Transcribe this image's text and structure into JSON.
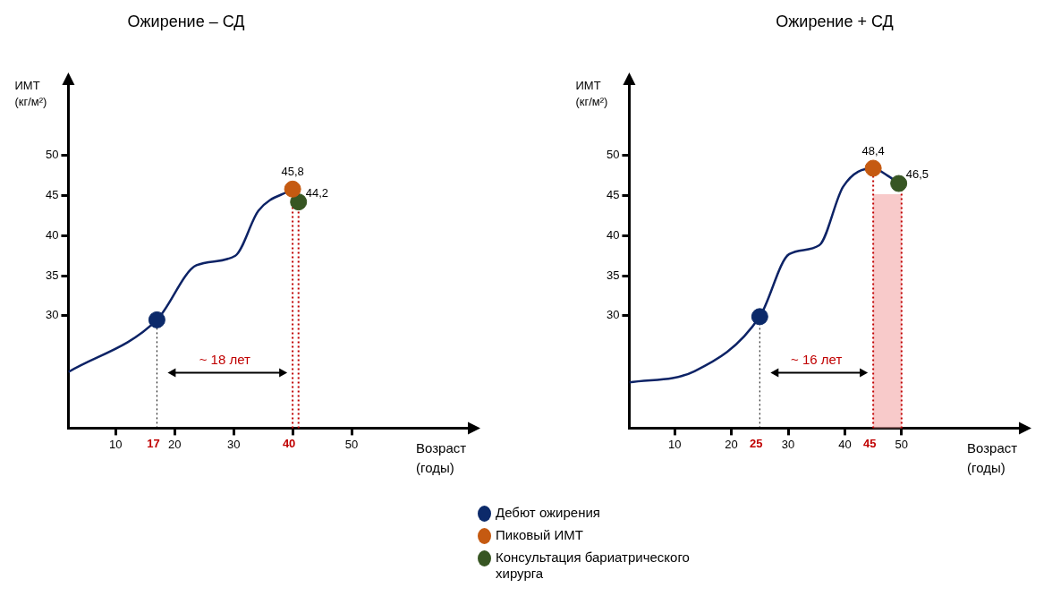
{
  "chart_data": [
    {
      "type": "line",
      "title": "Ожирение – СД",
      "xlabel": "Возраст\n(годы)",
      "ylabel": "ИМТ\n(кг/м²)",
      "xlim": [
        2,
        70
      ],
      "ylim": [
        16,
        59
      ],
      "xticks": [
        10,
        20,
        30,
        {
          "value": 40,
          "label": null
        },
        50
      ],
      "yticks": [
        30,
        35,
        40,
        45,
        50
      ],
      "grid": false,
      "series": [
        {
          "color": "#0d2366",
          "x": [
            2,
            17,
            23.7,
            30.3,
            34.2,
            40
          ],
          "values": [
            23,
            29.5,
            36.3,
            37.5,
            43.1,
            45.8
          ]
        },
        {
          "type": "scatter",
          "color": "#0c2a6a",
          "x": [
            17
          ],
          "values": [
            29.5
          ]
        },
        {
          "type": "scatter",
          "color": "#c55a11",
          "x": [
            40
          ],
          "values": [
            45.8
          ],
          "value_labels": [
            "45,8"
          ]
        },
        {
          "type": "scatter",
          "color": "#375623",
          "x": [
            41
          ],
          "values": [
            44.2
          ],
          "value_labels": [
            "44,2"
          ]
        }
      ],
      "ref_lines": [
        {
          "axis": "x",
          "value": 17,
          "label": "17",
          "color": "#000000",
          "line_style": "dotted"
        },
        {
          "axis": "x",
          "value": 40,
          "label": "40",
          "color": "#c00000",
          "line_style": "dotted"
        },
        {
          "axis": "x",
          "value": 41,
          "color": "#c00000",
          "line_style": "dotted"
        }
      ],
      "annotations": [
        "~ 18 лет"
      ]
    },
    {
      "type": "line",
      "title": "Ожирение + СД",
      "xlabel": "Возраст\n(годы)",
      "ylabel": "ИМТ\n(кг/м²)",
      "xlim": [
        2,
        71
      ],
      "ylim": [
        16,
        59
      ],
      "xticks": [
        10,
        20,
        30,
        40,
        50
      ],
      "yticks": [
        30,
        35,
        40,
        45,
        50
      ],
      "grid": false,
      "legend": "bottom",
      "series": [
        {
          "color": "#0d2366",
          "x": [
            2,
            13.5,
            25,
            30.2,
            35.5,
            39.7,
            45,
            47.5,
            49.5
          ],
          "values": [
            21.7,
            23.1,
            29.9,
            37.7,
            38.8,
            46.1,
            48.4,
            47.5,
            46.5
          ]
        },
        {
          "type": "scatter",
          "name": "Дебют ожирения",
          "color": "#0c2a6a",
          "x": [
            25
          ],
          "values": [
            29.9
          ]
        },
        {
          "type": "scatter",
          "name": "Пиковый ИМТ",
          "color": "#c55a11",
          "x": [
            45
          ],
          "values": [
            48.4
          ],
          "value_labels": [
            "48,4"
          ]
        },
        {
          "type": "scatter",
          "name": "Консультация бариатрического хирурга",
          "color": "#375623",
          "x": [
            49.5
          ],
          "values": [
            46.5
          ],
          "value_labels": [
            "46,5"
          ]
        }
      ],
      "ref_lines": [
        {
          "axis": "x",
          "value": 25,
          "label": "25",
          "color": "#000000",
          "line_style": "dotted"
        },
        {
          "axis": "x",
          "value": 45,
          "label": "45",
          "color": "#c00000",
          "line_style": "dotted"
        },
        {
          "axis": "x",
          "value": 50,
          "color": "#c00000",
          "line_style": "dotted"
        }
      ],
      "bands": [
        {
          "axis": "x",
          "from": 45,
          "to": 50,
          "color": "#f4a6a6"
        }
      ],
      "annotations": [
        "~ 16 лет"
      ]
    }
  ]
}
